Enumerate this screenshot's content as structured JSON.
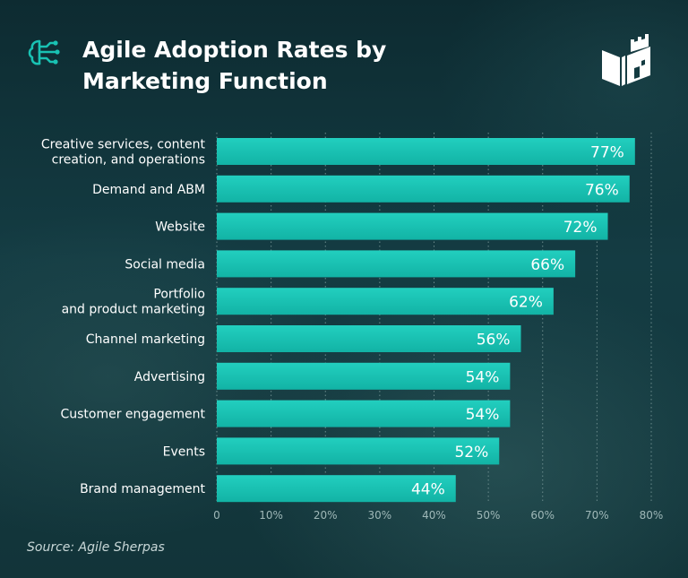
{
  "header": {
    "title_line1": "Agile Adoption Rates by",
    "title_line2": "Marketing Function"
  },
  "icons": {
    "brand": "ai-circuit-icon",
    "logo": "book-castle-logo-icon"
  },
  "colors": {
    "bar": "#17bfb0",
    "bar_top": "#1fcdbd",
    "text": "#ffffff",
    "axis_text": "#9fb8b8",
    "grid": "#6b8b8c"
  },
  "chart_data": {
    "type": "bar",
    "orientation": "horizontal",
    "categories": [
      [
        "Creative services, content",
        "creation, and operations"
      ],
      [
        "Demand and ABM"
      ],
      [
        "Website"
      ],
      [
        "Social media"
      ],
      [
        "Portfolio",
        "and product marketing"
      ],
      [
        "Channel marketing"
      ],
      [
        "Advertising"
      ],
      [
        "Customer engagement"
      ],
      [
        "Events"
      ],
      [
        "Brand management"
      ]
    ],
    "values": [
      77,
      76,
      72,
      66,
      62,
      56,
      54,
      54,
      52,
      44
    ],
    "value_labels": [
      "77%",
      "76%",
      "72%",
      "66%",
      "62%",
      "56%",
      "54%",
      "54%",
      "52%",
      "44%"
    ],
    "xticks": [
      "0",
      "10%",
      "20%",
      "30%",
      "40%",
      "50%",
      "60%",
      "70%",
      "80%"
    ],
    "xlim": [
      0,
      80
    ],
    "grid": true
  },
  "footer": {
    "source": "Source: Agile Sherpas"
  }
}
